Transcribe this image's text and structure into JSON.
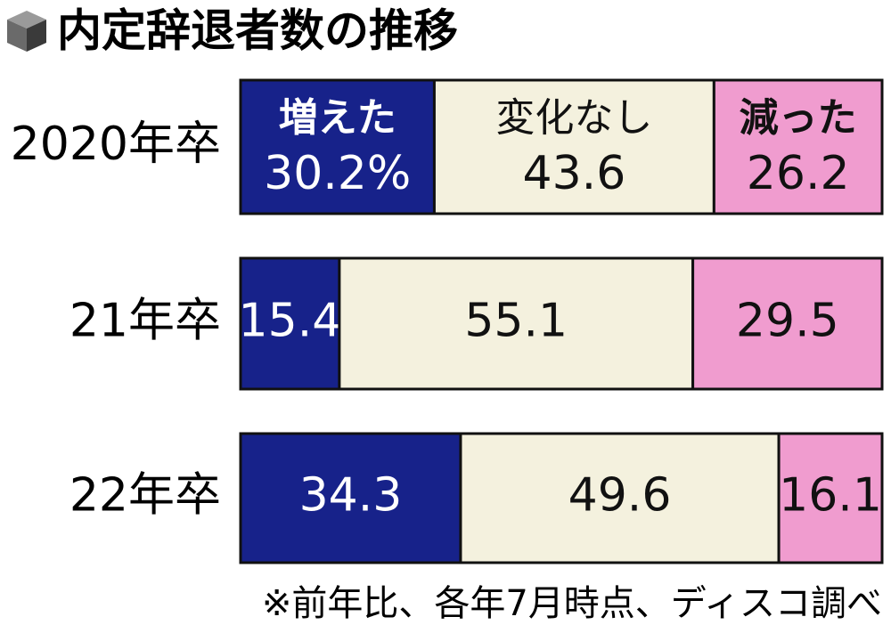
{
  "chart_data": {
    "type": "stacked-bar-horizontal",
    "title": "内定辞退者数の推移",
    "note": "※前年比、各年7月時点、ディスコ調べ",
    "categories": [
      "2020年卒",
      "21年卒",
      "22年卒"
    ],
    "xlim": [
      0,
      100
    ],
    "series": [
      {
        "name": "増えた",
        "color": "#17228a",
        "values": [
          30.2,
          15.4,
          34.3
        ],
        "value_labels": [
          "30.2%",
          "15.4",
          "34.3"
        ]
      },
      {
        "name": "変化なし",
        "color": "#f4f1de",
        "values": [
          43.6,
          55.1,
          49.6
        ]
      },
      {
        "name": "減った",
        "color": "#f09ccf",
        "values": [
          26.2,
          29.5,
          16.1
        ]
      }
    ]
  }
}
